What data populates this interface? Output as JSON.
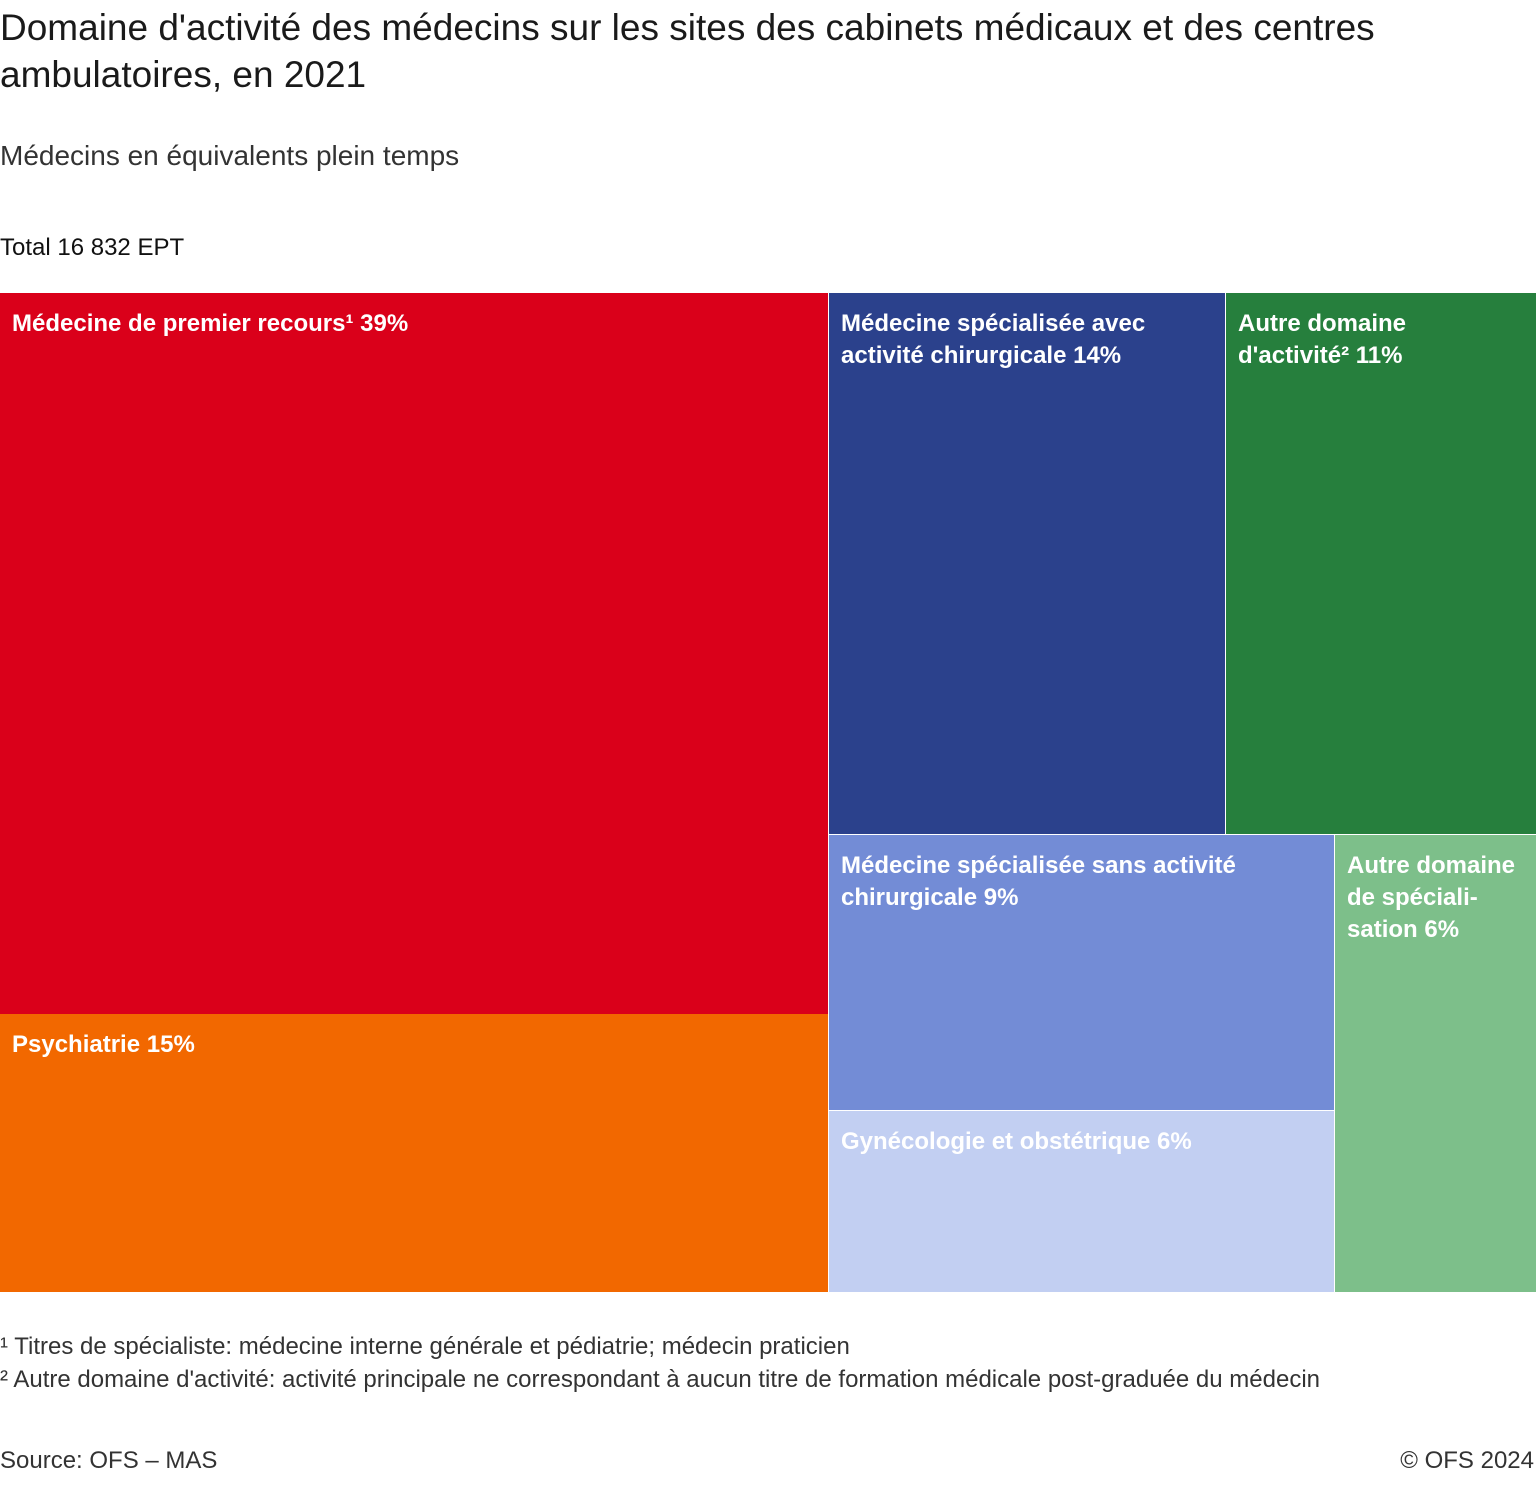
{
  "chart_data": {
    "type": "treemap",
    "title": "Domaine d'activité des médecins sur les sites des cabinets médicaux et des centres ambulatoires, en 2021",
    "subtitle": "Médecins en équivalents plein temps",
    "total_label": "Total 16 832 EPT",
    "unit": "%",
    "items": [
      {
        "label": "Médecine de premier recours¹ 39%",
        "name": "Médecine de premier recours¹",
        "value": 39,
        "color": "#da001a"
      },
      {
        "label": "Psychiatrie 15%",
        "name": "Psychiatrie",
        "value": 15,
        "color": "#f26800"
      },
      {
        "label": "Médecine spécialisée avec activité chirurgicale 14%",
        "name": "Médecine spécialisée avec activité chirurgicale",
        "value": 14,
        "color": "#2b418c"
      },
      {
        "label": "Autre domaine d'activité² 11%",
        "name": "Autre domaine d'activité²",
        "value": 11,
        "color": "#267f3d"
      },
      {
        "label": "Médecine spécialisée sans activité chirurgicale 9%",
        "name": "Médecine spécialisée sans activité chirurgicale",
        "value": 9,
        "color": "#738cd6"
      },
      {
        "label": "Gynécologie et obstétrique 6%",
        "name": "Gynécologie et obstétrique",
        "value": 6,
        "color": "#c2cff2"
      },
      {
        "label": "Autre domaine de spéciali-sation 6%",
        "name": "Autre domaine de spécialisation",
        "value": 6,
        "color": "#7dbf8a"
      }
    ]
  },
  "footnotes": {
    "note1": "¹ Titres de spécialiste: médecine interne générale et pédiatrie; médecin praticien",
    "note2": "² Autre domaine d'activité: activité principale ne correspondant à aucun titre de formation médicale post-graduée du médecin"
  },
  "source": "Source: OFS – MAS",
  "copyright": "© OFS 2024"
}
